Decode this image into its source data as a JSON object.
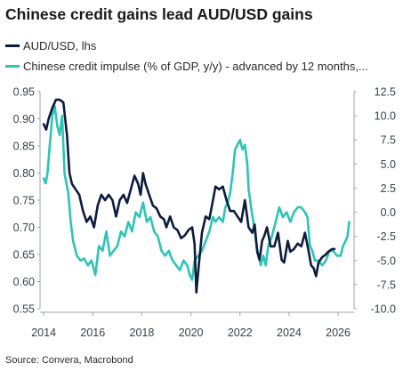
{
  "chart_data": {
    "type": "line",
    "title": "Chinese credit gains lead AUD/USD gains",
    "source": "Source: Convera, Macrobond",
    "xlabel": "",
    "ylabel": "",
    "x_ticks": [
      "2014",
      "2016",
      "2018",
      "2020",
      "2022",
      "2024",
      "2026"
    ],
    "xlim": [
      2013.85,
      2026.65
    ],
    "left_axis": {
      "ticks": [
        "0.55",
        "0.60",
        "0.65",
        "0.70",
        "0.75",
        "0.80",
        "0.85",
        "0.90",
        "0.95"
      ],
      "ylim": [
        0.55,
        0.95
      ]
    },
    "right_axis": {
      "ticks": [
        "-10.0",
        "-7.5",
        "-5.0",
        "-2.5",
        "0.0",
        "2.5",
        "5.0",
        "7.5",
        "10.0",
        "12.5"
      ],
      "ylim": [
        -10.0,
        12.5
      ]
    },
    "grid": false,
    "legend_position": "top-left",
    "series": [
      {
        "name": "AUD/USD, lhs",
        "axis": "left",
        "color": "#0d1b3d",
        "points": [
          [
            2014.0,
            0.89
          ],
          [
            2014.1,
            0.88
          ],
          [
            2014.2,
            0.9
          ],
          [
            2014.35,
            0.92
          ],
          [
            2014.5,
            0.935
          ],
          [
            2014.65,
            0.935
          ],
          [
            2014.8,
            0.93
          ],
          [
            2014.95,
            0.87
          ],
          [
            2015.05,
            0.8
          ],
          [
            2015.15,
            0.78
          ],
          [
            2015.3,
            0.77
          ],
          [
            2015.45,
            0.76
          ],
          [
            2015.6,
            0.73
          ],
          [
            2015.75,
            0.71
          ],
          [
            2015.9,
            0.72
          ],
          [
            2016.05,
            0.7
          ],
          [
            2016.2,
            0.74
          ],
          [
            2016.35,
            0.76
          ],
          [
            2016.5,
            0.75
          ],
          [
            2016.65,
            0.76
          ],
          [
            2016.8,
            0.75
          ],
          [
            2016.95,
            0.72
          ],
          [
            2017.1,
            0.75
          ],
          [
            2017.25,
            0.76
          ],
          [
            2017.4,
            0.745
          ],
          [
            2017.55,
            0.77
          ],
          [
            2017.7,
            0.795
          ],
          [
            2017.85,
            0.78
          ],
          [
            2017.95,
            0.76
          ],
          [
            2018.05,
            0.8
          ],
          [
            2018.15,
            0.78
          ],
          [
            2018.3,
            0.76
          ],
          [
            2018.45,
            0.74
          ],
          [
            2018.6,
            0.735
          ],
          [
            2018.75,
            0.72
          ],
          [
            2018.9,
            0.715
          ],
          [
            2019.0,
            0.7
          ],
          [
            2019.15,
            0.72
          ],
          [
            2019.3,
            0.7
          ],
          [
            2019.45,
            0.695
          ],
          [
            2019.6,
            0.68
          ],
          [
            2019.75,
            0.685
          ],
          [
            2019.9,
            0.695
          ],
          [
            2020.05,
            0.7
          ],
          [
            2020.15,
            0.67
          ],
          [
            2020.22,
            0.58
          ],
          [
            2020.3,
            0.62
          ],
          [
            2020.45,
            0.69
          ],
          [
            2020.6,
            0.72
          ],
          [
            2020.75,
            0.715
          ],
          [
            2020.9,
            0.75
          ],
          [
            2021.0,
            0.775
          ],
          [
            2021.15,
            0.77
          ],
          [
            2021.3,
            0.775
          ],
          [
            2021.45,
            0.75
          ],
          [
            2021.6,
            0.73
          ],
          [
            2021.75,
            0.73
          ],
          [
            2021.9,
            0.72
          ],
          [
            2022.05,
            0.71
          ],
          [
            2022.2,
            0.75
          ],
          [
            2022.35,
            0.7
          ],
          [
            2022.5,
            0.69
          ],
          [
            2022.6,
            0.705
          ],
          [
            2022.7,
            0.655
          ],
          [
            2022.8,
            0.64
          ],
          [
            2022.9,
            0.675
          ],
          [
            2023.0,
            0.685
          ],
          [
            2023.1,
            0.7
          ],
          [
            2023.25,
            0.665
          ],
          [
            2023.4,
            0.665
          ],
          [
            2023.55,
            0.69
          ],
          [
            2023.7,
            0.64
          ],
          [
            2023.8,
            0.635
          ],
          [
            2023.95,
            0.675
          ],
          [
            2024.05,
            0.655
          ],
          [
            2024.2,
            0.66
          ],
          [
            2024.35,
            0.67
          ],
          [
            2024.5,
            0.665
          ],
          [
            2024.65,
            0.69
          ],
          [
            2024.8,
            0.655
          ],
          [
            2024.9,
            0.63
          ],
          [
            2025.0,
            0.625
          ],
          [
            2025.1,
            0.61
          ],
          [
            2025.2,
            0.635
          ],
          [
            2025.35,
            0.645
          ],
          [
            2025.5,
            0.65
          ],
          [
            2025.6,
            0.655
          ],
          [
            2025.75,
            0.66
          ],
          [
            2025.85,
            0.66
          ]
        ]
      },
      {
        "name": "Chinese credit impulse (% of GDP, y/y) - advanced by 12 months,...",
        "axis": "right",
        "color": "#2ec4b6",
        "points": [
          [
            2014.0,
            3.5
          ],
          [
            2014.08,
            3.0
          ],
          [
            2014.15,
            4.0
          ],
          [
            2014.25,
            7.0
          ],
          [
            2014.35,
            10.0
          ],
          [
            2014.45,
            11.0
          ],
          [
            2014.55,
            9.0
          ],
          [
            2014.65,
            8.0
          ],
          [
            2014.75,
            10.0
          ],
          [
            2014.85,
            4.0
          ],
          [
            2015.0,
            2.0
          ],
          [
            2015.1,
            -1.0
          ],
          [
            2015.2,
            -3.0
          ],
          [
            2015.35,
            -4.5
          ],
          [
            2015.5,
            -5.0
          ],
          [
            2015.65,
            -4.8
          ],
          [
            2015.8,
            -5.5
          ],
          [
            2015.95,
            -5.0
          ],
          [
            2016.1,
            -6.5
          ],
          [
            2016.25,
            -3.5
          ],
          [
            2016.4,
            -4.0
          ],
          [
            2016.55,
            -2.0
          ],
          [
            2016.7,
            -4.5
          ],
          [
            2016.85,
            -4.0
          ],
          [
            2017.0,
            -3.5
          ],
          [
            2017.15,
            -2.0
          ],
          [
            2017.3,
            -2.5
          ],
          [
            2017.45,
            -1.0
          ],
          [
            2017.6,
            -2.0
          ],
          [
            2017.75,
            0.0
          ],
          [
            2017.9,
            -0.5
          ],
          [
            2018.05,
            1.0
          ],
          [
            2018.2,
            -1.0
          ],
          [
            2018.35,
            -0.5
          ],
          [
            2018.5,
            -2.0
          ],
          [
            2018.65,
            -2.5
          ],
          [
            2018.8,
            -4.0
          ],
          [
            2018.95,
            -4.5
          ],
          [
            2019.1,
            -4.0
          ],
          [
            2019.25,
            -5.0
          ],
          [
            2019.4,
            -5.5
          ],
          [
            2019.55,
            -6.0
          ],
          [
            2019.7,
            -5.0
          ],
          [
            2019.85,
            -5.5
          ],
          [
            2019.95,
            -6.5
          ],
          [
            2020.05,
            -7.0
          ],
          [
            2020.15,
            -5.0
          ],
          [
            2020.3,
            -4.5
          ],
          [
            2020.45,
            -4.0
          ],
          [
            2020.6,
            -3.0
          ],
          [
            2020.75,
            -2.0
          ],
          [
            2020.9,
            -0.5
          ],
          [
            2021.0,
            -1.0
          ],
          [
            2021.15,
            -0.5
          ],
          [
            2021.3,
            -1.0
          ],
          [
            2021.4,
            0.5
          ],
          [
            2021.5,
            1.0
          ],
          [
            2021.6,
            2.0
          ],
          [
            2021.7,
            4.0
          ],
          [
            2021.8,
            6.5
          ],
          [
            2021.9,
            7.0
          ],
          [
            2022.0,
            7.5
          ],
          [
            2022.1,
            6.5
          ],
          [
            2022.2,
            7.0
          ],
          [
            2022.3,
            5.0
          ],
          [
            2022.35,
            2.5
          ],
          [
            2022.45,
            0.5
          ],
          [
            2022.55,
            -1.0
          ],
          [
            2022.65,
            -3.0
          ],
          [
            2022.75,
            -4.5
          ],
          [
            2022.85,
            -5.5
          ],
          [
            2022.95,
            -4.5
          ],
          [
            2023.05,
            -5.5
          ],
          [
            2023.15,
            -3.5
          ],
          [
            2023.3,
            -2.5
          ],
          [
            2023.45,
            -1.0
          ],
          [
            2023.6,
            0.5
          ],
          [
            2023.75,
            -0.5
          ],
          [
            2023.9,
            0.0
          ],
          [
            2024.05,
            -1.0
          ],
          [
            2024.2,
            0.0
          ],
          [
            2024.35,
            0.5
          ],
          [
            2024.5,
            0.5
          ],
          [
            2024.65,
            0.0
          ],
          [
            2024.75,
            -0.5
          ],
          [
            2024.85,
            -3.5
          ],
          [
            2024.95,
            -4.0
          ],
          [
            2025.05,
            -5.0
          ],
          [
            2025.2,
            -5.0
          ],
          [
            2025.35,
            -5.5
          ],
          [
            2025.5,
            -5.0
          ],
          [
            2025.65,
            -4.0
          ],
          [
            2025.8,
            -4.0
          ],
          [
            2025.95,
            -4.5
          ],
          [
            2026.1,
            -4.5
          ],
          [
            2026.2,
            -3.5
          ],
          [
            2026.3,
            -3.0
          ],
          [
            2026.38,
            -2.5
          ],
          [
            2026.45,
            -1.0
          ]
        ]
      }
    ]
  }
}
